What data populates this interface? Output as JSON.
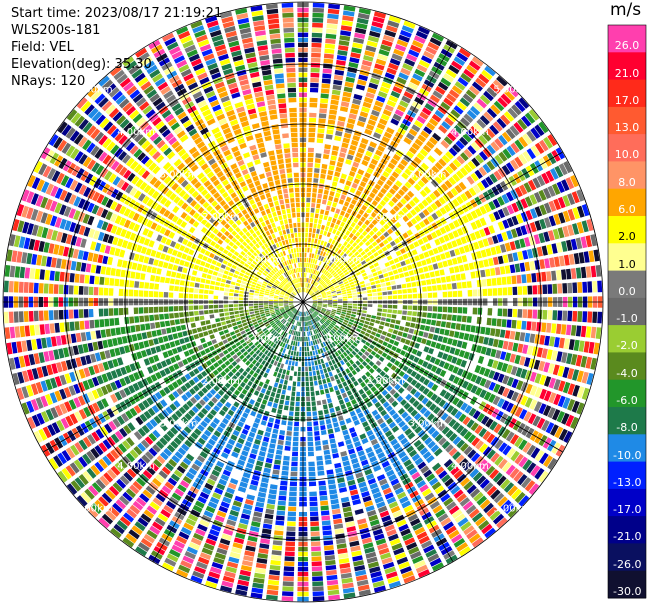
{
  "header": {
    "start_time": "Start time: 2023/08/17 21:19:21",
    "instrument": "WLS200s-181",
    "field": "Field: VEL",
    "elevation": "Elevation(deg): 35.30",
    "nrays": "NRays: 120"
  },
  "colorbar": {
    "unit": "m/s",
    "levels": [
      {
        "label": "26.0",
        "color": "#ff3fae"
      },
      {
        "label": "21.0",
        "color": "#ff0030"
      },
      {
        "label": "17.0",
        "color": "#ff2a1a"
      },
      {
        "label": "13.0",
        "color": "#ff5a30"
      },
      {
        "label": "10.0",
        "color": "#ff6d5a"
      },
      {
        "label": "8.0",
        "color": "#ff9466"
      },
      {
        "label": "6.0",
        "color": "#ffa600"
      },
      {
        "label": "2.0",
        "color": "#ffff00"
      },
      {
        "label": "1.0",
        "color": "#ffff90"
      },
      {
        "label": "0.0",
        "color": "#7a7a7a"
      },
      {
        "label": "-1.0",
        "color": "#6a6a6a"
      },
      {
        "label": "-2.0",
        "color": "#9acd32"
      },
      {
        "label": "-4.0",
        "color": "#5a8a1e"
      },
      {
        "label": "-6.0",
        "color": "#22962a"
      },
      {
        "label": "-8.0",
        "color": "#1e7a4a"
      },
      {
        "label": "-10.0",
        "color": "#1f8ae6"
      },
      {
        "label": "-13.0",
        "color": "#0020ff"
      },
      {
        "label": "-17.0",
        "color": "#0000c8"
      },
      {
        "label": "-21.0",
        "color": "#00008a"
      },
      {
        "label": "-26.0",
        "color": "#0a1060"
      },
      {
        "label": "-30.0",
        "color": "#101030"
      }
    ]
  },
  "chart_data": {
    "type": "heatmap",
    "subtype": "radar PPI (polar)",
    "field": "VEL",
    "unit": "m/s",
    "elevation_deg": 35.3,
    "nrays": 120,
    "range_rings_km": [
      1.0,
      2.0,
      3.0,
      4.0,
      5.0
    ],
    "range_ring_labels": [
      "1.00km",
      "2.00km",
      "3.00km",
      "4.00km",
      "5.00km"
    ],
    "radial_line_bearings_deg": [
      0,
      30,
      60,
      90,
      120,
      150,
      180,
      210,
      240,
      270,
      300,
      330
    ],
    "max_range_km": 5.0,
    "clim": [
      -30.0,
      26.0
    ],
    "pattern": {
      "north_sector_inner_velocity": "+2.0 to +6.0 (yellow/orange, receding)",
      "south_sector_inner_velocity": "-2.0 to -10.0 (green/blue, approaching)",
      "outer_ranges": "noise (random colors beyond ~3.5 km)"
    }
  }
}
